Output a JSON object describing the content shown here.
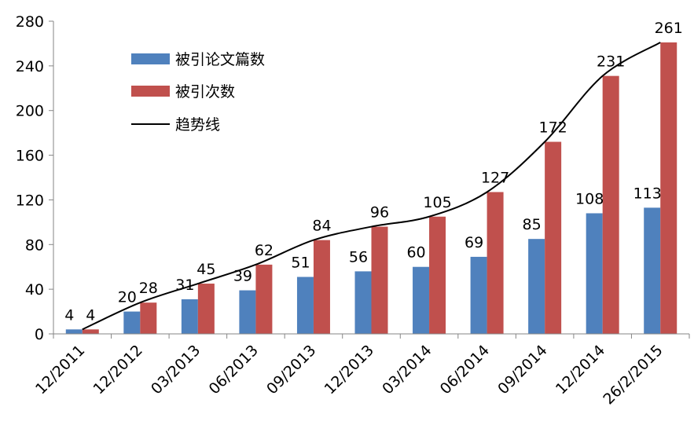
{
  "chart_data": {
    "type": "bar",
    "categories": [
      "12/2011",
      "12/2012",
      "03/2013",
      "06/2013",
      "09/2013",
      "12/2013",
      "03/2014",
      "06/2014",
      "09/2014",
      "12/2014",
      "26/2/2015"
    ],
    "series": [
      {
        "name": "被引论文篇数",
        "values": [
          4,
          20,
          31,
          39,
          51,
          56,
          60,
          69,
          85,
          108,
          113
        ],
        "color": "#4F81BD"
      },
      {
        "name": "被引次数",
        "values": [
          4,
          28,
          45,
          62,
          84,
          96,
          105,
          127,
          172,
          231,
          261
        ],
        "color": "#C0504D"
      }
    ],
    "trendline": {
      "name": "趋势线",
      "follows": "被引次数",
      "color": "#000000"
    },
    "ylim": [
      0,
      280
    ],
    "yticks": [
      0,
      40,
      80,
      120,
      160,
      200,
      240,
      280
    ],
    "grid": false,
    "legend_position": "top-left",
    "x_tick_rotation": -45
  }
}
